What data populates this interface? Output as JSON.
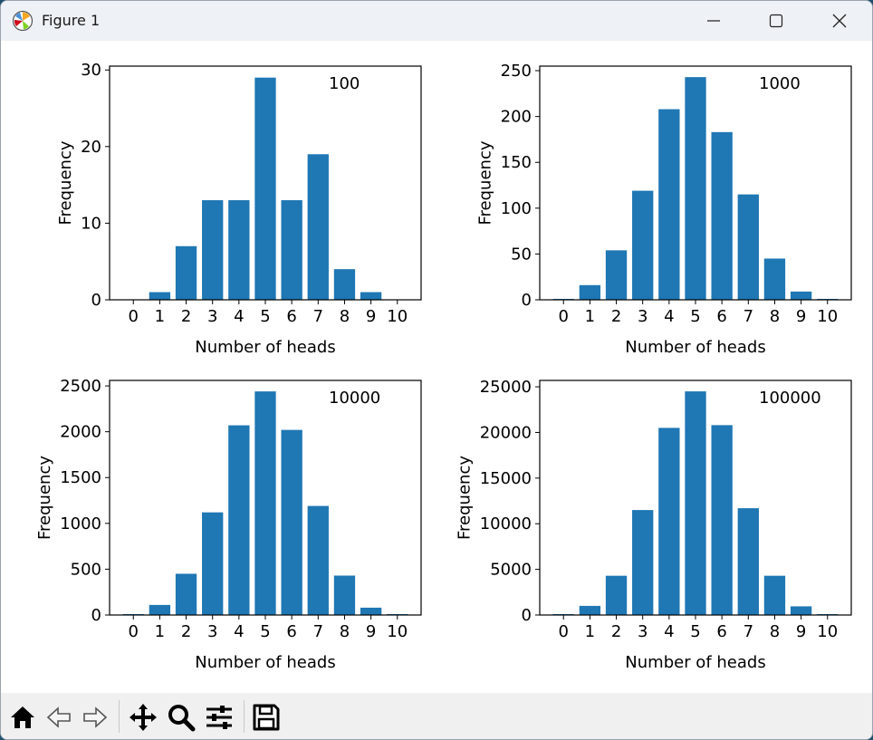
{
  "window": {
    "title": "Figure 1",
    "controls": [
      "minimize-icon",
      "maximize-icon",
      "close-icon"
    ]
  },
  "toolbar": {
    "tools": [
      {
        "name": "home",
        "icon": "home-icon"
      },
      {
        "name": "back",
        "icon": "back-arrow-icon"
      },
      {
        "name": "forward",
        "icon": "forward-arrow-icon"
      },
      {
        "name": "pan",
        "icon": "pan-move-icon"
      },
      {
        "name": "zoom",
        "icon": "zoom-magnifier-icon"
      },
      {
        "name": "configure-subplots",
        "icon": "sliders-icon"
      },
      {
        "name": "save",
        "icon": "save-floppy-icon"
      }
    ]
  },
  "colors": {
    "bar": "#1f77b4",
    "axis": "#000000"
  },
  "chart_data": [
    {
      "type": "bar",
      "annotation": "100",
      "xlabel": "Number of heads",
      "ylabel": "Frequency",
      "categories": [
        "0",
        "1",
        "2",
        "3",
        "4",
        "5",
        "6",
        "7",
        "8",
        "9",
        "10"
      ],
      "values": [
        0,
        1,
        7,
        13,
        13,
        29,
        13,
        19,
        4,
        1,
        0
      ],
      "ylim": [
        0,
        30.5
      ],
      "yticks": [
        0,
        10,
        20,
        30
      ]
    },
    {
      "type": "bar",
      "annotation": "1000",
      "xlabel": "Number of heads",
      "ylabel": "Frequency",
      "categories": [
        "0",
        "1",
        "2",
        "3",
        "4",
        "5",
        "6",
        "7",
        "8",
        "9",
        "10"
      ],
      "values": [
        1,
        16,
        54,
        119,
        208,
        243,
        183,
        115,
        45,
        9,
        1
      ],
      "ylim": [
        0,
        255
      ],
      "yticks": [
        0,
        50,
        100,
        150,
        200,
        250
      ]
    },
    {
      "type": "bar",
      "annotation": "10000",
      "xlabel": "Number of heads",
      "ylabel": "Frequency",
      "categories": [
        "0",
        "1",
        "2",
        "3",
        "4",
        "5",
        "6",
        "7",
        "8",
        "9",
        "10"
      ],
      "values": [
        10,
        110,
        450,
        1120,
        2070,
        2440,
        2020,
        1190,
        430,
        80,
        10
      ],
      "ylim": [
        0,
        2560
      ],
      "yticks": [
        0,
        500,
        1000,
        1500,
        2000,
        2500
      ]
    },
    {
      "type": "bar",
      "annotation": "100000",
      "xlabel": "Number of heads",
      "ylabel": "Frequency",
      "categories": [
        "0",
        "1",
        "2",
        "3",
        "4",
        "5",
        "6",
        "7",
        "8",
        "9",
        "10"
      ],
      "values": [
        100,
        1000,
        4300,
        11500,
        20500,
        24500,
        20800,
        11700,
        4300,
        950,
        100
      ],
      "ylim": [
        0,
        25700
      ],
      "yticks": [
        0,
        5000,
        10000,
        15000,
        20000,
        25000
      ]
    }
  ]
}
